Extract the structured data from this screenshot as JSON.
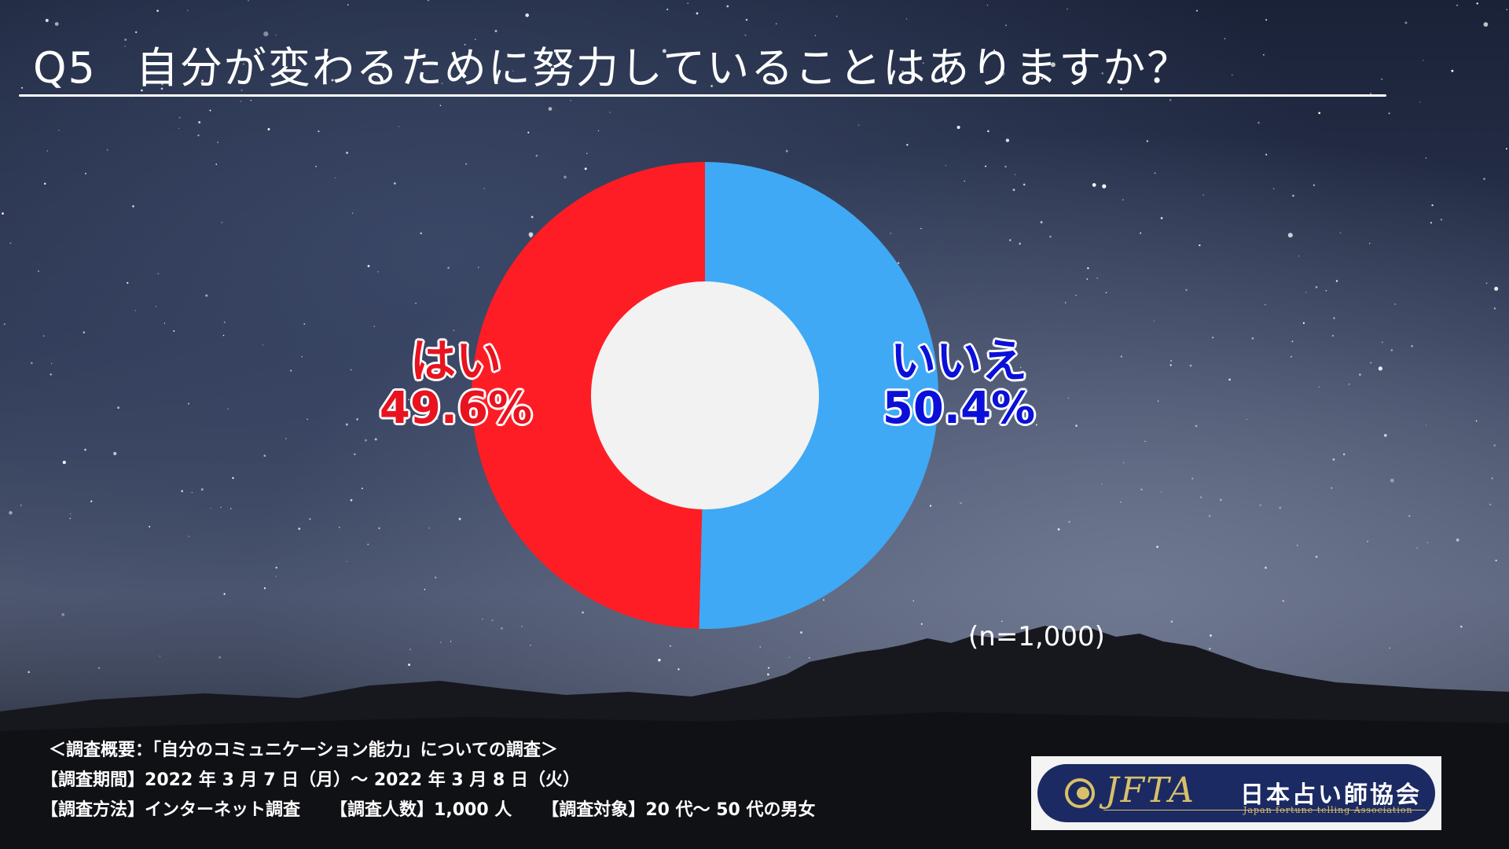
{
  "title": {
    "question_number": "Q5",
    "question_text": "自分が変わるために努力していることはありますか？"
  },
  "chart_data": {
    "type": "pie",
    "style": "donut",
    "categories": [
      "はい",
      "いいえ"
    ],
    "values": [
      49.6,
      50.4
    ],
    "value_labels": [
      "49.6%",
      "50.4%"
    ],
    "colors": [
      "#ff1d25",
      "#3fa9f5"
    ],
    "label_colors": [
      "#e8131f",
      "#0b10d8"
    ],
    "hole_color": "#f2f2f2",
    "note": "(n=1,000)"
  },
  "footer": {
    "overview": "＜調査概要：「自分のコミュニケーション能力」についての調査＞",
    "period_label": "【調査期間】",
    "period_value": "2022 年 3 月 7 日（月）～ 2022 年 3 月 8 日（火）",
    "method_label": "【調査方法】",
    "method_value": "インターネット調査",
    "count_label": "【調査人数】",
    "count_value": "1,000 人",
    "target_label": "【調査対象】",
    "target_value": "20 代～ 50 代の男女"
  },
  "logo": {
    "acronym": "JFTA",
    "name_jp": "日本占い師協会",
    "name_en": "Japan fortune telling Association"
  }
}
